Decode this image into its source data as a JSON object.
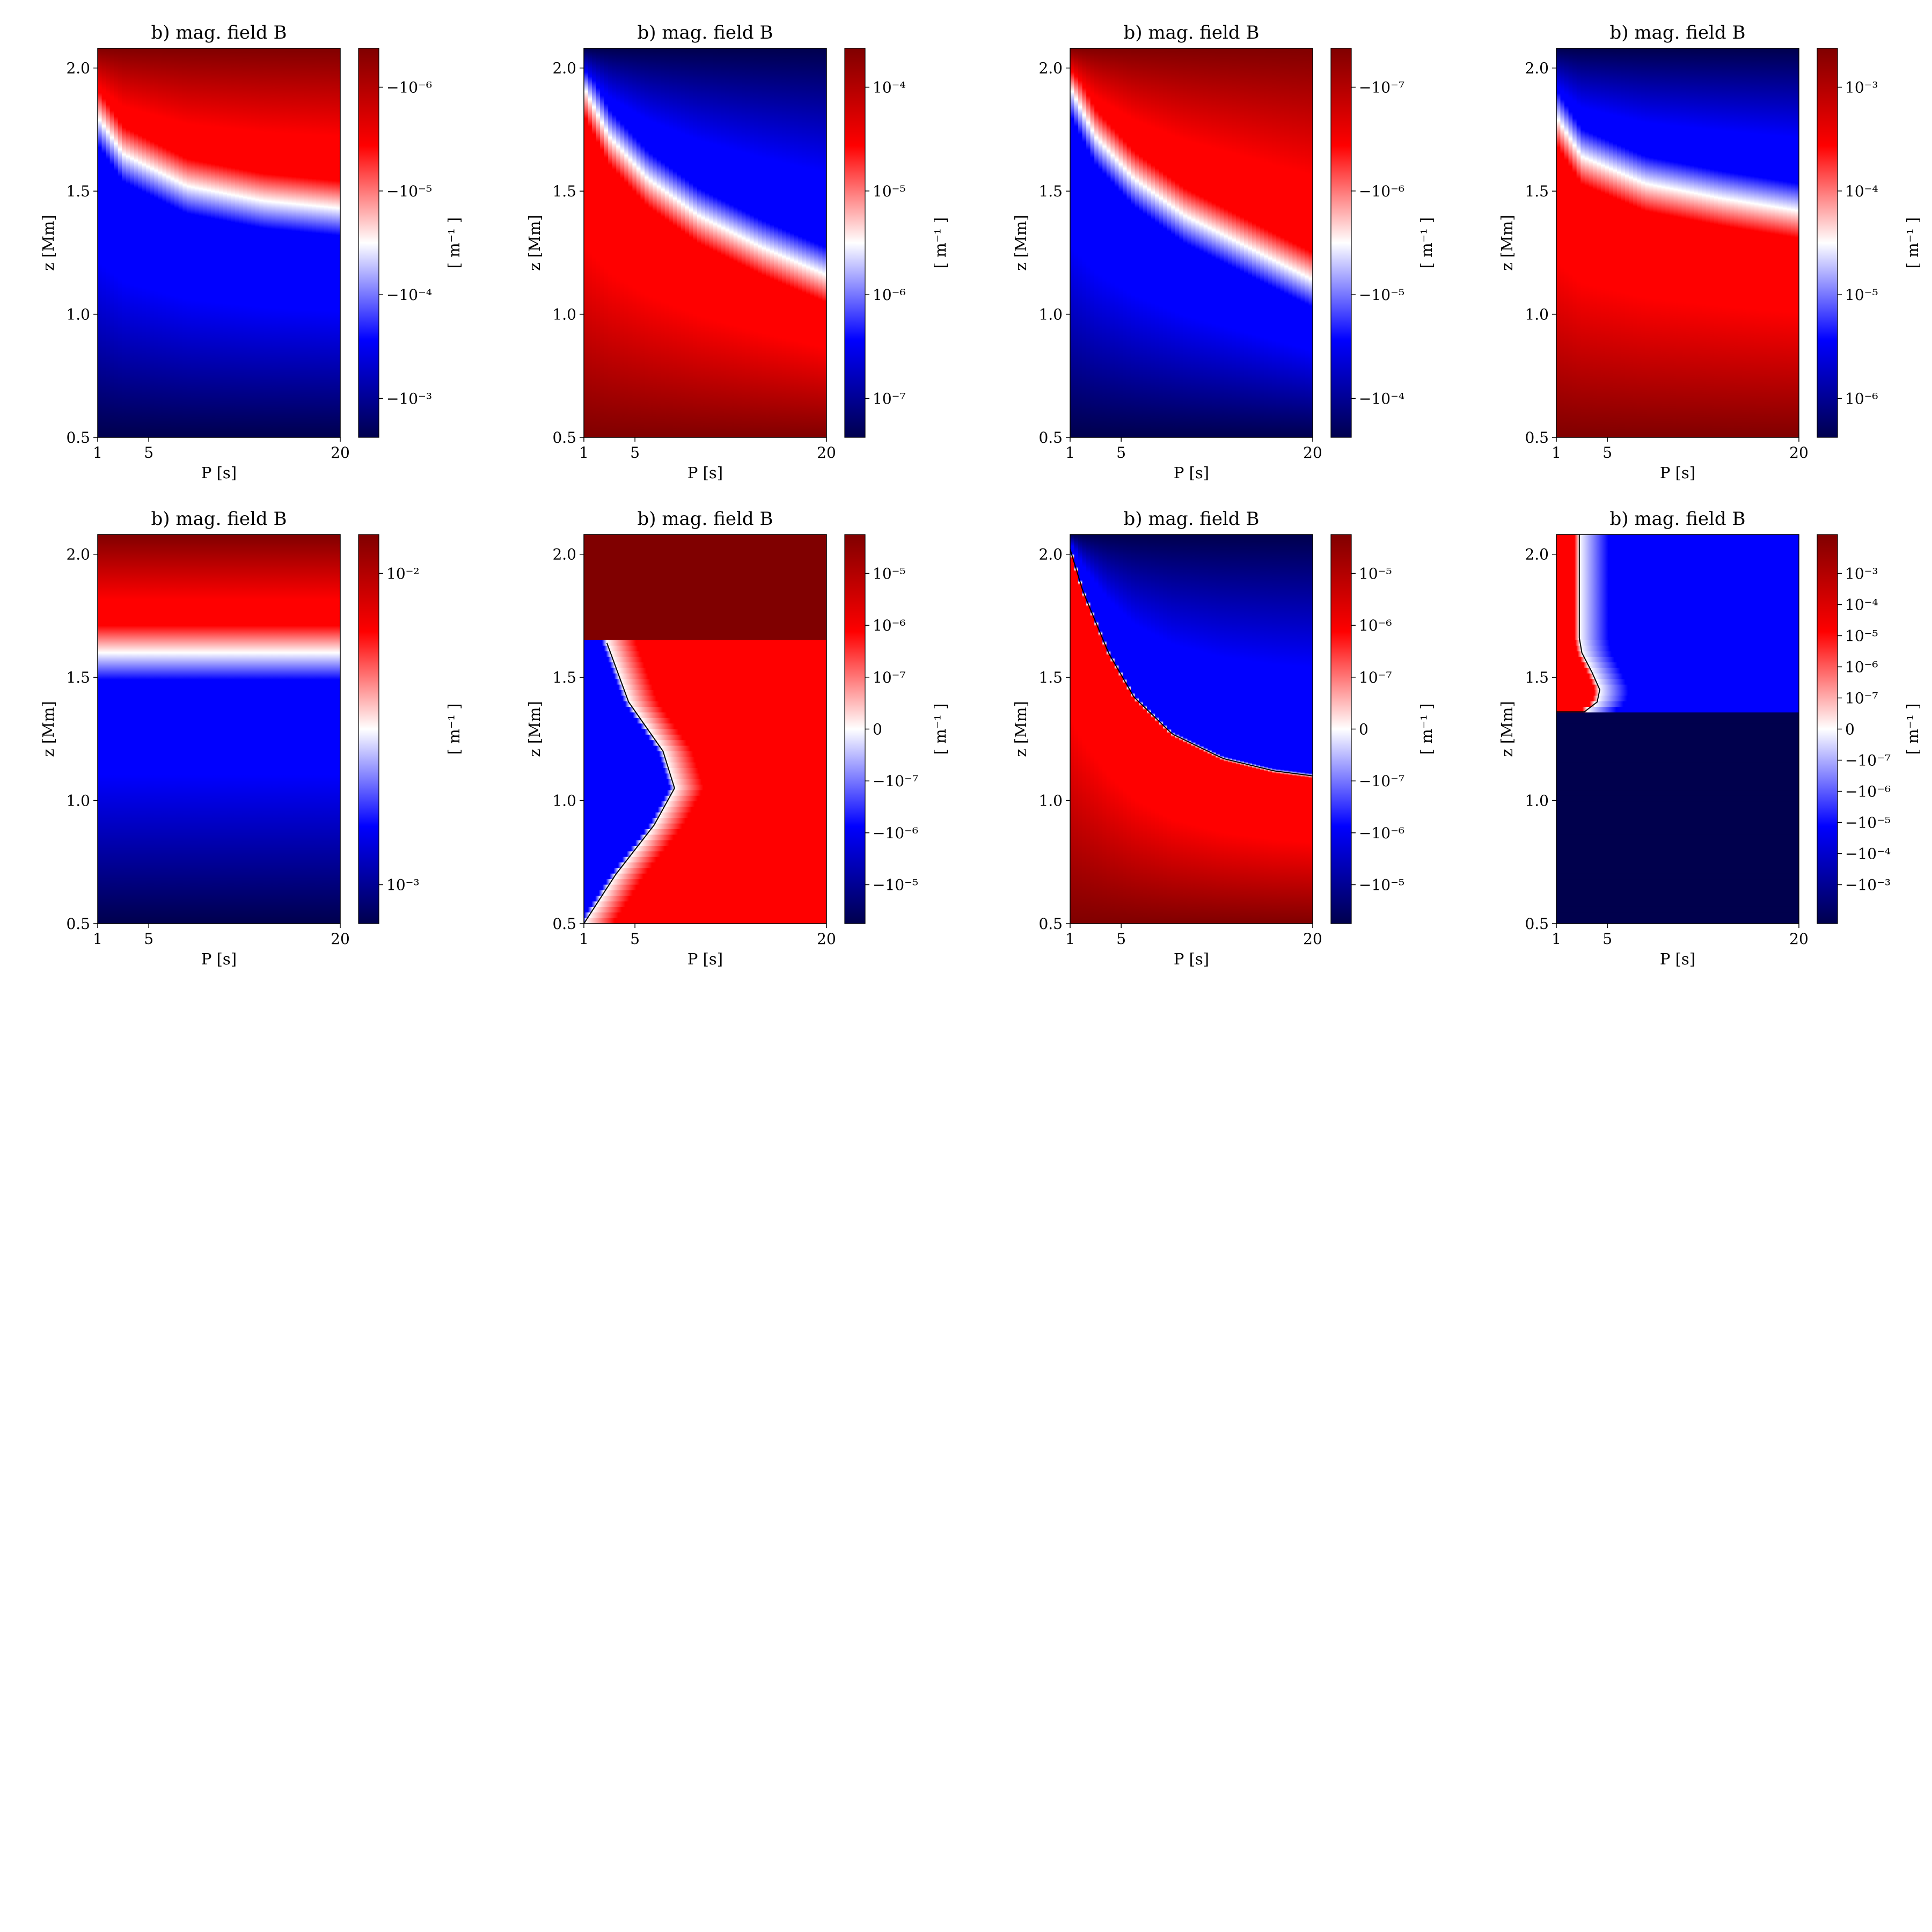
{
  "figure": {
    "colormap_stops": [
      "#00004d",
      "#0000ff",
      "#ffffff",
      "#ff0000",
      "#800000"
    ],
    "contour_color": "#000000"
  },
  "chart_data": [
    {
      "type": "heatmap",
      "title": "b) mag. field B",
      "xlabel": "P [s]",
      "ylabel": "z [Mm]",
      "cbar_label": "[ m⁻¹ ]",
      "xlim": [
        1,
        20
      ],
      "ylim": [
        0.5,
        2.08
      ],
      "xticks": [
        "1",
        "5",
        "20"
      ],
      "yticks": [
        "0.5",
        "1.0",
        "1.5",
        "2.0"
      ],
      "cbar_ticks": [
        "−10⁻³",
        "−10⁻⁴",
        "−10⁻⁵",
        "−10⁻⁶"
      ],
      "pattern": "boundary",
      "boundary_z": [
        [
          1,
          1.8
        ],
        [
          3,
          1.65
        ],
        [
          8,
          1.52
        ],
        [
          14,
          1.46
        ],
        [
          20,
          1.43
        ]
      ],
      "below_sign": -1,
      "sharp": false
    },
    {
      "type": "heatmap",
      "title": "b) mag. field B",
      "xlabel": "P [s]",
      "ylabel": "z [Mm]",
      "cbar_label": "[ m⁻¹ ]",
      "xlim": [
        1,
        20
      ],
      "ylim": [
        0.5,
        2.08
      ],
      "xticks": [
        "1",
        "5",
        "20"
      ],
      "yticks": [
        "0.5",
        "1.0",
        "1.5",
        "2.0"
      ],
      "cbar_ticks": [
        "10⁻⁷",
        "10⁻⁶",
        "10⁻⁵",
        "10⁻⁴"
      ],
      "pattern": "boundary",
      "boundary_z": [
        [
          1,
          1.92
        ],
        [
          3,
          1.72
        ],
        [
          6,
          1.55
        ],
        [
          10,
          1.4
        ],
        [
          15,
          1.27
        ],
        [
          20,
          1.16
        ]
      ],
      "below_sign": 1,
      "sharp": false
    },
    {
      "type": "heatmap",
      "title": "b) mag. field B",
      "xlabel": "P [s]",
      "ylabel": "z [Mm]",
      "cbar_label": "[ m⁻¹ ]",
      "xlim": [
        1,
        20
      ],
      "ylim": [
        0.5,
        2.08
      ],
      "xticks": [
        "1",
        "5",
        "20"
      ],
      "yticks": [
        "0.5",
        "1.0",
        "1.5",
        "2.0"
      ],
      "cbar_ticks": [
        "−10⁻⁴",
        "−10⁻⁵",
        "−10⁻⁶",
        "−10⁻⁷"
      ],
      "pattern": "boundary",
      "boundary_z": [
        [
          1,
          1.92
        ],
        [
          3,
          1.72
        ],
        [
          6,
          1.55
        ],
        [
          10,
          1.4
        ],
        [
          15,
          1.27
        ],
        [
          20,
          1.14
        ]
      ],
      "below_sign": -1,
      "sharp": false
    },
    {
      "type": "heatmap",
      "title": "b) mag. field B",
      "xlabel": "P [s]",
      "ylabel": "z [Mm]",
      "cbar_label": "[ m⁻¹ ]",
      "xlim": [
        1,
        20
      ],
      "ylim": [
        0.5,
        2.08
      ],
      "xticks": [
        "1",
        "5",
        "20"
      ],
      "yticks": [
        "0.5",
        "1.0",
        "1.5",
        "2.0"
      ],
      "cbar_ticks": [
        "10⁻⁶",
        "10⁻⁵",
        "10⁻⁴",
        "10⁻³"
      ],
      "pattern": "boundary",
      "boundary_z": [
        [
          1,
          1.8
        ],
        [
          3,
          1.64
        ],
        [
          8,
          1.53
        ],
        [
          14,
          1.47
        ],
        [
          20,
          1.42
        ]
      ],
      "below_sign": 1,
      "sharp": false
    },
    {
      "type": "heatmap",
      "title": "b) mag. field B",
      "xlabel": "P [s]",
      "ylabel": "z [Mm]",
      "cbar_label": "[ m⁻¹ ]",
      "xlim": [
        1,
        20
      ],
      "ylim": [
        0.5,
        2.08
      ],
      "xticks": [
        "1",
        "5",
        "20"
      ],
      "yticks": [
        "0.5",
        "1.0",
        "1.5",
        "2.0"
      ],
      "cbar_ticks": [
        "10⁻³",
        "10⁻²"
      ],
      "pattern": "horizontal",
      "boundary_z": [
        [
          1,
          1.6
        ],
        [
          20,
          1.6
        ]
      ],
      "below_sign": -1,
      "sharp": false
    },
    {
      "type": "heatmap",
      "title": "b) mag. field B",
      "xlabel": "P [s]",
      "ylabel": "z [Mm]",
      "cbar_label": "[ m⁻¹ ]",
      "xlim": [
        1,
        20
      ],
      "ylim": [
        0.5,
        2.08
      ],
      "xticks": [
        "1",
        "5",
        "20"
      ],
      "yticks": [
        "0.5",
        "1.0",
        "1.5",
        "2.0"
      ],
      "cbar_ticks": [
        "−10⁻⁵",
        "−10⁻⁶",
        "−10⁻⁷",
        "0",
        "10⁻⁷",
        "10⁻⁶",
        "10⁻⁵"
      ],
      "pattern": "bulge",
      "boundary_p": [
        [
          0.5,
          1
        ],
        [
          0.7,
          3.5
        ],
        [
          0.9,
          6.5
        ],
        [
          1.05,
          8.1
        ],
        [
          1.2,
          7.2
        ],
        [
          1.4,
          4.5
        ],
        [
          1.64,
          2.8
        ]
      ],
      "sharp": true
    },
    {
      "type": "heatmap",
      "title": "b) mag. field B",
      "xlabel": "P [s]",
      "ylabel": "z [Mm]",
      "cbar_label": "[ m⁻¹ ]",
      "xlim": [
        1,
        20
      ],
      "ylim": [
        0.5,
        2.08
      ],
      "xticks": [
        "1",
        "5",
        "20"
      ],
      "yticks": [
        "0.5",
        "1.0",
        "1.5",
        "2.0"
      ],
      "cbar_ticks": [
        "−10⁻⁵",
        "−10⁻⁶",
        "−10⁻⁷",
        "0",
        "10⁻⁷",
        "10⁻⁶",
        "10⁻⁵"
      ],
      "pattern": "boundary",
      "boundary_z": [
        [
          1,
          2.02
        ],
        [
          2,
          1.85
        ],
        [
          4,
          1.6
        ],
        [
          6,
          1.42
        ],
        [
          9,
          1.27
        ],
        [
          13,
          1.17
        ],
        [
          17,
          1.12
        ],
        [
          20,
          1.1
        ]
      ],
      "below_sign": 1,
      "sharp": true
    },
    {
      "type": "heatmap",
      "title": "b) mag. field B",
      "xlabel": "P [s]",
      "ylabel": "z [Mm]",
      "cbar_label": "[ m⁻¹ ]",
      "xlim": [
        1,
        20
      ],
      "ylim": [
        0.5,
        2.08
      ],
      "xticks": [
        "1",
        "5",
        "20"
      ],
      "yticks": [
        "0.5",
        "1.0",
        "1.5",
        "2.0"
      ],
      "cbar_ticks": [
        "−10⁻³",
        "−10⁻⁴",
        "−10⁻⁵",
        "−10⁻⁶",
        "−10⁻⁷",
        "0",
        "10⁻⁷",
        "10⁻⁶",
        "10⁻⁵",
        "10⁻⁴",
        "10⁻³"
      ],
      "pattern": "strip",
      "boundary_p": [
        [
          1.36,
          1
        ],
        [
          1.36,
          3.2
        ],
        [
          1.4,
          4.2
        ],
        [
          1.45,
          4.4
        ],
        [
          1.52,
          3.8
        ],
        [
          1.6,
          3.0
        ],
        [
          1.66,
          2.8
        ],
        [
          2.08,
          2.8
        ]
      ],
      "sharp": true
    }
  ]
}
